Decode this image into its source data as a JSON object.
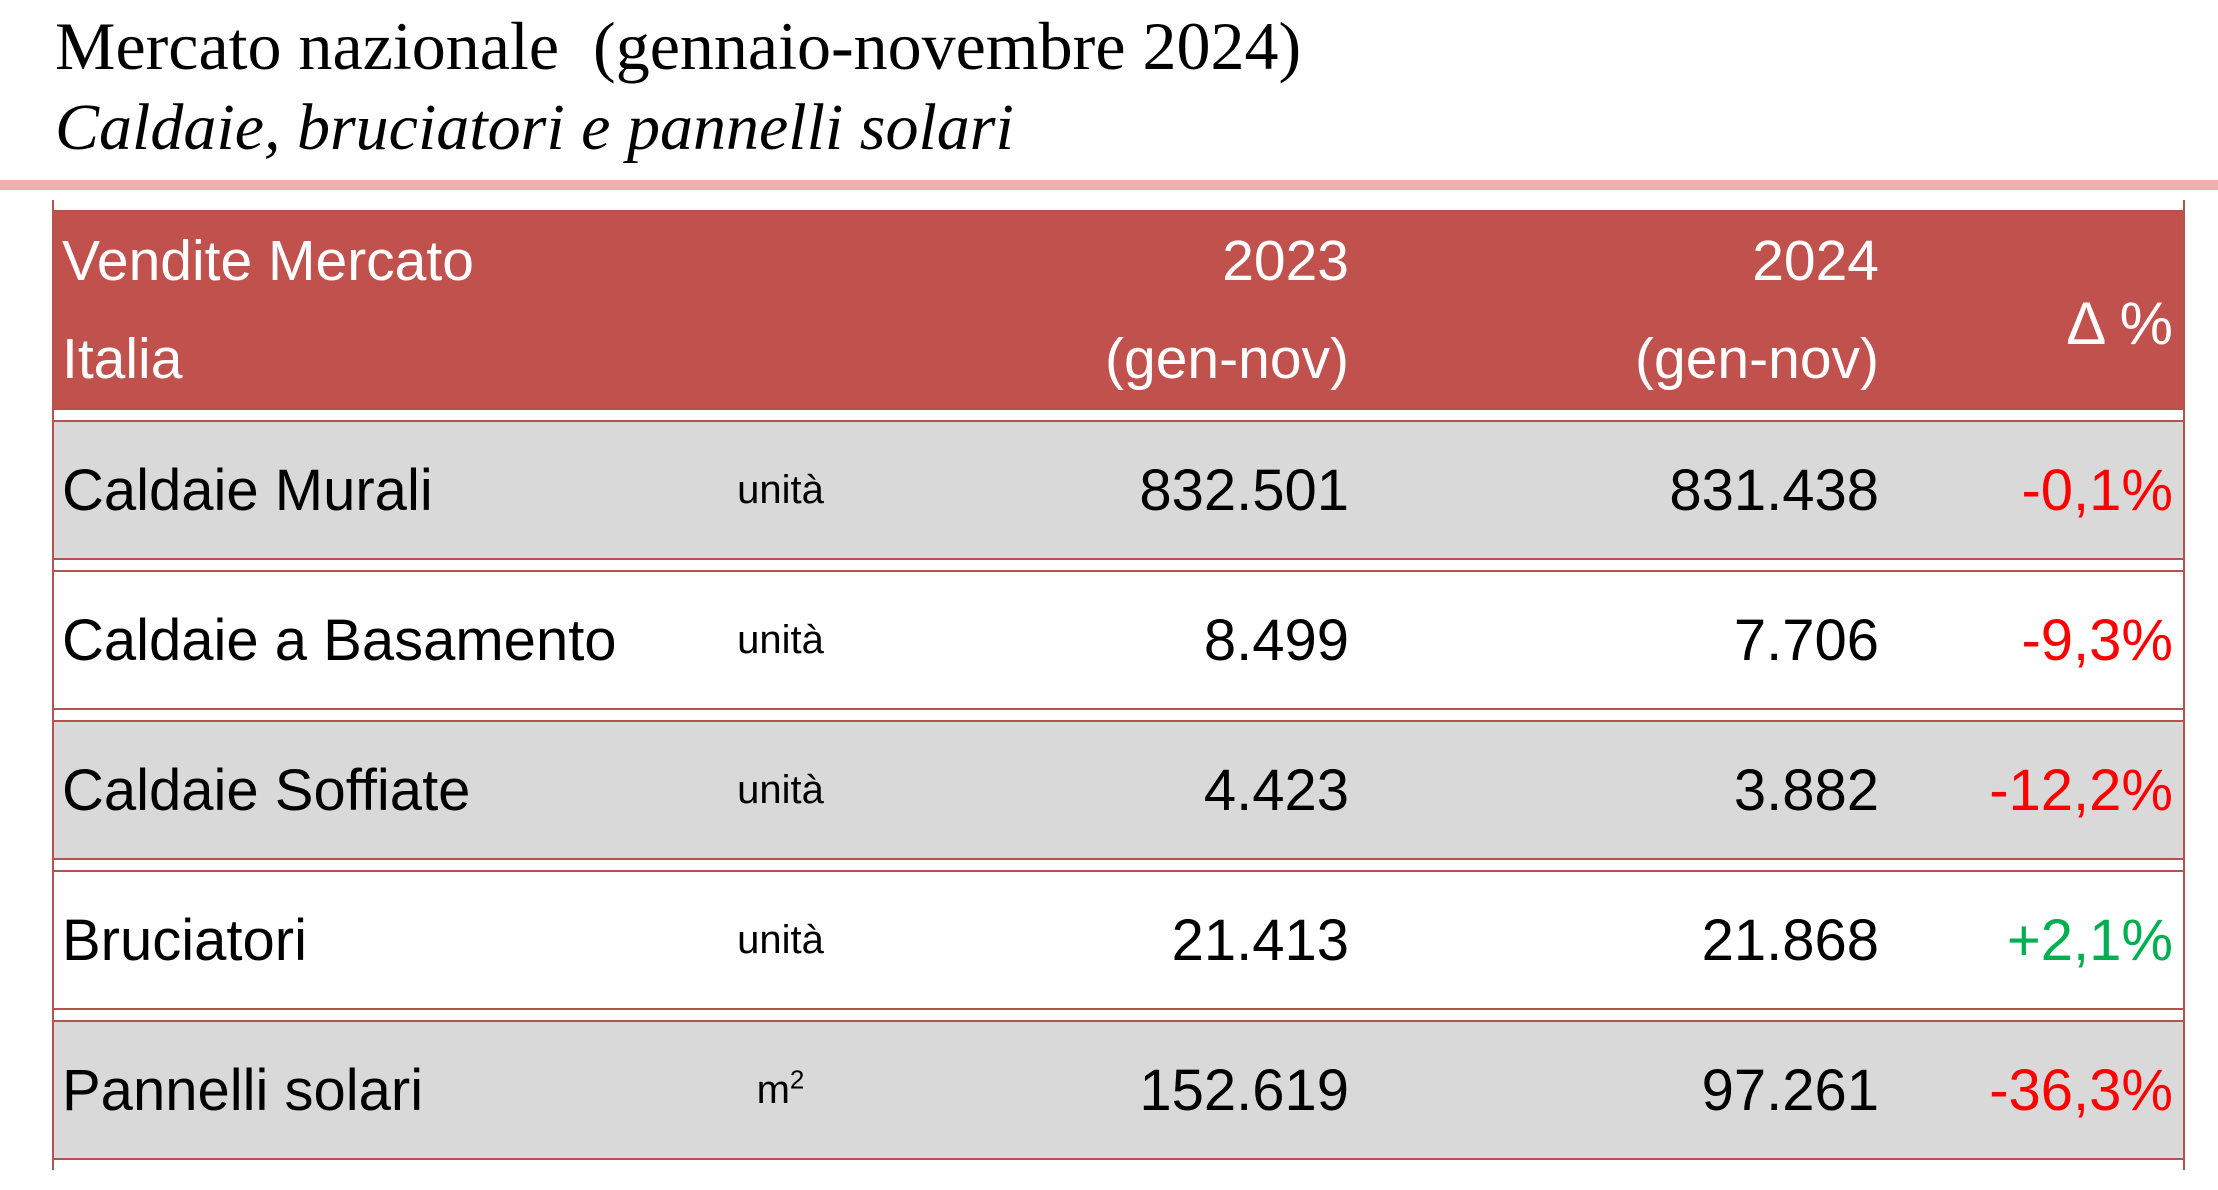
{
  "title": {
    "line1": "Mercato nazionale  (gennaio-novembre 2024)",
    "line2": "Caldaie, bruciatori e pannelli solari"
  },
  "table": {
    "header": {
      "label_line1": "Vendite Mercato",
      "label_line2": "Italia",
      "col2023_line1": "2023",
      "col2023_line2": "(gen-nov)",
      "col2024_line1": "2024",
      "col2024_line2": "(gen-nov)",
      "delta": "Δ %"
    },
    "rows": [
      {
        "name": "Caldaie Murali",
        "unit_base": "unità",
        "unit_sup": "",
        "y2023": "832.501",
        "y2024": "831.438",
        "delta": "-0,1%",
        "trend": "negative"
      },
      {
        "name": "Caldaie a Basamento",
        "unit_base": "unità",
        "unit_sup": "",
        "y2023": "8.499",
        "y2024": "7.706",
        "delta": "-9,3%",
        "trend": "negative"
      },
      {
        "name": "Caldaie Soffiate",
        "unit_base": "unità",
        "unit_sup": "",
        "y2023": "4.423",
        "y2024": "3.882",
        "delta": "-12,2%",
        "trend": "negative"
      },
      {
        "name": "Bruciatori",
        "unit_base": "unità",
        "unit_sup": "",
        "y2023": "21.413",
        "y2024": "21.868",
        "delta": "+2,1%",
        "trend": "positive"
      },
      {
        "name": "Pannelli solari",
        "unit_base": "m",
        "unit_sup": "2",
        "y2023": "152.619",
        "y2024": "97.261",
        "delta": "-36,3%",
        "trend": "negative"
      }
    ]
  },
  "colors": {
    "header_bg": "#C1514D",
    "border": "#B3534F",
    "row_alt": "#D9D9D9",
    "rule_pink": "#F0AFAC",
    "negative": "#FF0000",
    "positive": "#00B050",
    "header_text": "#FFFFFF",
    "text": "#000000"
  }
}
